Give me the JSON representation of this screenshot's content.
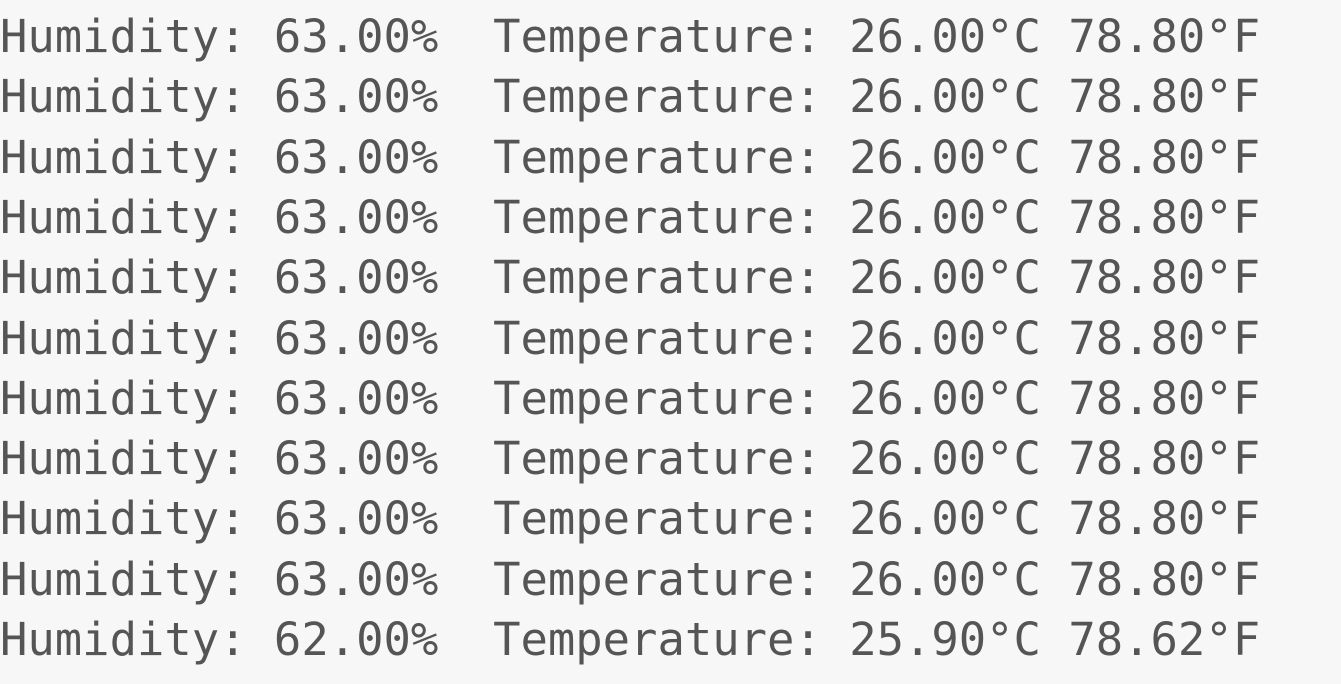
{
  "lines": [
    "Humidity: 63.00%  Temperature: 26.00°C 78.80°F",
    "Humidity: 63.00%  Temperature: 26.00°C 78.80°F",
    "Humidity: 63.00%  Temperature: 26.00°C 78.80°F",
    "Humidity: 63.00%  Temperature: 26.00°C 78.80°F",
    "Humidity: 63.00%  Temperature: 26.00°C 78.80°F",
    "Humidity: 63.00%  Temperature: 26.00°C 78.80°F",
    "Humidity: 63.00%  Temperature: 26.00°C 78.80°F",
    "Humidity: 63.00%  Temperature: 26.00°C 78.80°F",
    "Humidity: 63.00%  Temperature: 26.00°C 78.80°F",
    "Humidity: 63.00%  Temperature: 26.00°C 78.80°F",
    "Humidity: 62.00%  Temperature: 25.90°C 78.62°F"
  ]
}
